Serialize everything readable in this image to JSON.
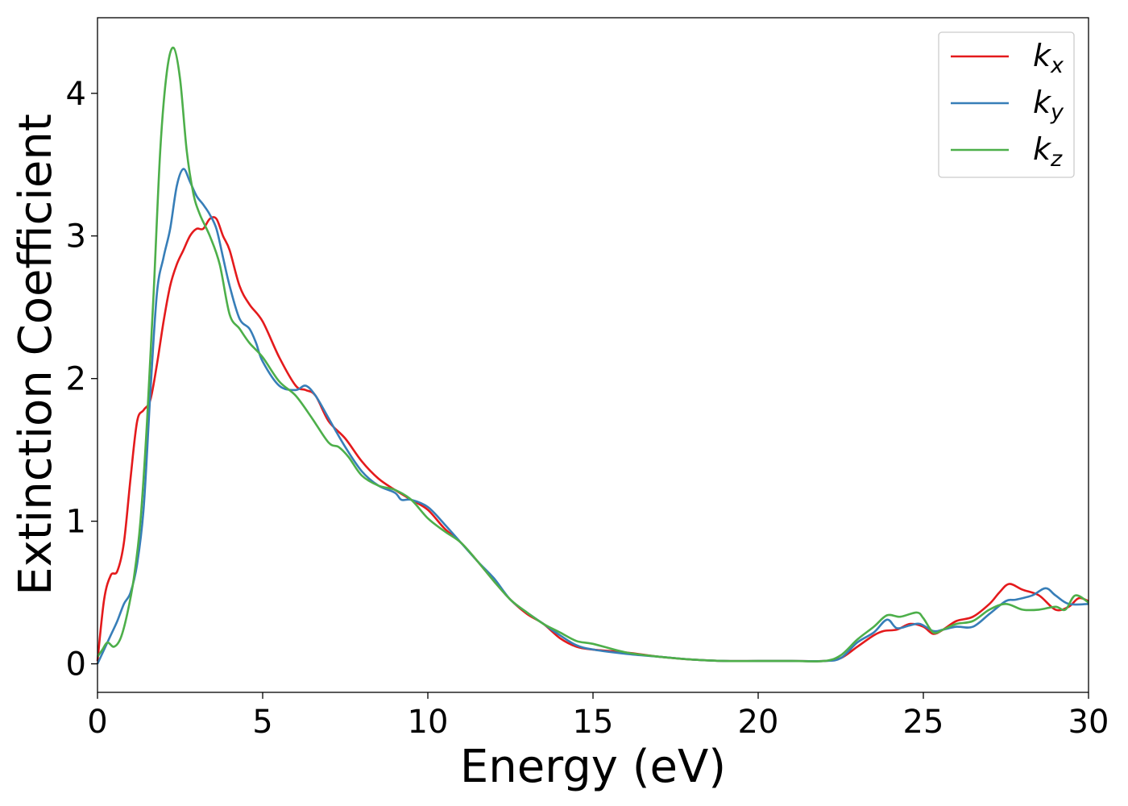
{
  "chart_data": {
    "type": "line",
    "xlabel": "Energy (eV)",
    "ylabel": "Extinction Coefficient",
    "xlim": [
      0,
      30
    ],
    "ylim": [
      -0.2,
      4.53
    ],
    "xticks": [
      0,
      5,
      10,
      15,
      20,
      25,
      30
    ],
    "xtick_labels": [
      "0",
      "5",
      "10",
      "15",
      "20",
      "25",
      "30"
    ],
    "yticks": [
      0,
      1,
      2,
      3,
      4
    ],
    "ytick_labels": [
      "0",
      "1",
      "2",
      "3",
      "4"
    ],
    "grid": false,
    "legend_position": "top-right",
    "series": [
      {
        "name": "k",
        "subscript": "x",
        "color": "#e41a1c",
        "x": [
          0,
          0.2,
          0.4,
          0.6,
          0.8,
          1.0,
          1.2,
          1.4,
          1.6,
          1.8,
          2.0,
          2.2,
          2.4,
          2.6,
          2.8,
          3.0,
          3.2,
          3.4,
          3.6,
          3.8,
          4.0,
          4.3,
          4.6,
          5.0,
          5.5,
          6.0,
          6.3,
          6.6,
          7.0,
          7.5,
          8.0,
          8.5,
          9.0,
          9.5,
          10.0,
          10.5,
          11.0,
          11.5,
          12.0,
          12.5,
          13.0,
          13.5,
          14.0,
          14.5,
          15.0,
          16.0,
          17.0,
          18.0,
          19.0,
          20.0,
          21.0,
          22.0,
          22.5,
          23.0,
          23.5,
          23.8,
          24.2,
          24.6,
          25.0,
          25.3,
          25.6,
          26.0,
          26.5,
          27.0,
          27.3,
          27.6,
          28.0,
          28.5,
          29.0,
          29.4,
          29.7,
          30.0
        ],
        "y": [
          0.02,
          0.45,
          0.62,
          0.65,
          0.85,
          1.3,
          1.7,
          1.78,
          1.85,
          2.1,
          2.4,
          2.65,
          2.8,
          2.9,
          3.0,
          3.05,
          3.05,
          3.12,
          3.12,
          3.0,
          2.9,
          2.65,
          2.52,
          2.4,
          2.15,
          1.95,
          1.92,
          1.88,
          1.7,
          1.58,
          1.42,
          1.3,
          1.22,
          1.15,
          1.08,
          0.95,
          0.85,
          0.72,
          0.58,
          0.45,
          0.35,
          0.28,
          0.18,
          0.12,
          0.1,
          0.08,
          0.05,
          0.03,
          0.02,
          0.02,
          0.02,
          0.02,
          0.04,
          0.12,
          0.2,
          0.23,
          0.24,
          0.28,
          0.26,
          0.21,
          0.24,
          0.3,
          0.33,
          0.42,
          0.5,
          0.56,
          0.52,
          0.48,
          0.38,
          0.4,
          0.46,
          0.44
        ]
      },
      {
        "name": "k",
        "subscript": "y",
        "color": "#377eb8",
        "x": [
          0,
          0.2,
          0.4,
          0.6,
          0.8,
          1.0,
          1.2,
          1.4,
          1.6,
          1.8,
          2.0,
          2.2,
          2.4,
          2.6,
          2.8,
          3.0,
          3.2,
          3.4,
          3.6,
          3.8,
          4.0,
          4.3,
          4.6,
          4.8,
          5.0,
          5.5,
          6.0,
          6.3,
          6.6,
          7.0,
          7.5,
          8.0,
          8.5,
          9.0,
          9.2,
          9.5,
          10.0,
          10.5,
          11.0,
          11.5,
          12.0,
          12.5,
          13.0,
          13.5,
          14.0,
          14.5,
          15.0,
          16.0,
          17.0,
          18.0,
          19.0,
          20.0,
          21.0,
          22.0,
          22.5,
          23.0,
          23.5,
          23.9,
          24.2,
          24.6,
          24.9,
          25.3,
          25.6,
          26.0,
          26.5,
          27.0,
          27.5,
          27.8,
          28.3,
          28.7,
          29.0,
          29.4,
          30.0
        ],
        "y": [
          0.0,
          0.1,
          0.2,
          0.3,
          0.42,
          0.5,
          0.7,
          1.1,
          1.9,
          2.6,
          2.85,
          3.05,
          3.35,
          3.47,
          3.38,
          3.28,
          3.22,
          3.15,
          3.05,
          2.85,
          2.65,
          2.42,
          2.35,
          2.25,
          2.12,
          1.95,
          1.92,
          1.95,
          1.88,
          1.72,
          1.52,
          1.35,
          1.25,
          1.2,
          1.15,
          1.15,
          1.1,
          0.98,
          0.85,
          0.72,
          0.6,
          0.45,
          0.36,
          0.28,
          0.2,
          0.13,
          0.1,
          0.07,
          0.05,
          0.03,
          0.02,
          0.02,
          0.02,
          0.02,
          0.04,
          0.15,
          0.22,
          0.31,
          0.25,
          0.27,
          0.28,
          0.23,
          0.24,
          0.26,
          0.26,
          0.35,
          0.44,
          0.45,
          0.48,
          0.53,
          0.48,
          0.42,
          0.42
        ]
      },
      {
        "name": "k",
        "subscript": "z",
        "color": "#4daf4a",
        "x": [
          0,
          0.15,
          0.3,
          0.5,
          0.7,
          0.9,
          1.1,
          1.3,
          1.5,
          1.7,
          1.9,
          2.1,
          2.3,
          2.5,
          2.7,
          2.9,
          3.1,
          3.4,
          3.7,
          4.0,
          4.3,
          4.6,
          5.0,
          5.5,
          6.0,
          6.5,
          7.0,
          7.3,
          7.6,
          8.0,
          8.5,
          9.0,
          9.5,
          10.0,
          10.5,
          11.0,
          11.5,
          12.0,
          12.5,
          13.0,
          13.5,
          14.0,
          14.5,
          15.0,
          16.0,
          17.0,
          18.0,
          19.0,
          20.0,
          21.0,
          22.0,
          22.5,
          23.0,
          23.5,
          23.9,
          24.3,
          24.8,
          25.0,
          25.3,
          25.6,
          26.0,
          26.5,
          27.0,
          27.5,
          28.0,
          28.5,
          29.0,
          29.3,
          29.6,
          30.0
        ],
        "y": [
          0.05,
          0.1,
          0.15,
          0.12,
          0.18,
          0.35,
          0.6,
          1.0,
          1.7,
          2.6,
          3.6,
          4.15,
          4.32,
          4.1,
          3.6,
          3.3,
          3.15,
          3.0,
          2.8,
          2.45,
          2.35,
          2.25,
          2.15,
          1.98,
          1.88,
          1.72,
          1.55,
          1.52,
          1.45,
          1.32,
          1.25,
          1.22,
          1.15,
          1.02,
          0.93,
          0.85,
          0.72,
          0.58,
          0.45,
          0.36,
          0.28,
          0.22,
          0.16,
          0.14,
          0.08,
          0.05,
          0.03,
          0.02,
          0.02,
          0.02,
          0.02,
          0.06,
          0.17,
          0.26,
          0.34,
          0.33,
          0.36,
          0.32,
          0.22,
          0.24,
          0.28,
          0.3,
          0.38,
          0.42,
          0.38,
          0.38,
          0.4,
          0.38,
          0.48,
          0.43
        ]
      }
    ]
  }
}
